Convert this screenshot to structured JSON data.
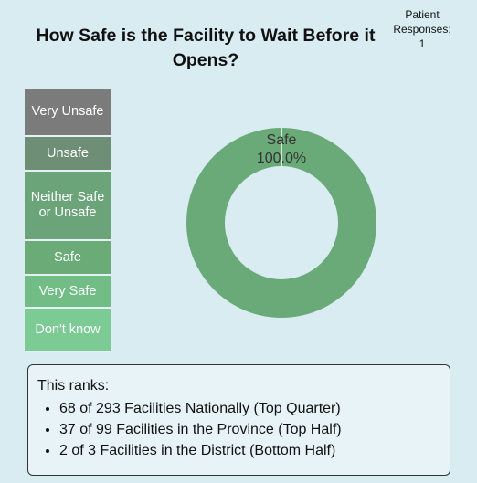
{
  "chart_data": {
    "type": "donut",
    "title": "How Safe is the Facility to Wait Before it Opens?",
    "categories": [
      "Safe"
    ],
    "values": [
      100
    ],
    "value_labels": [
      "100.0%"
    ],
    "colors": [
      "#6aaa78"
    ]
  },
  "responses": {
    "label": "Patient Responses:",
    "count": 1
  },
  "legend": [
    {
      "label": "Very Unsafe",
      "color": "#7b7b7b"
    },
    {
      "label": "Unsafe",
      "color": "#6e8f76"
    },
    {
      "label": "Neither Safe or Unsafe",
      "color": "#6ca47a"
    },
    {
      "label": "Safe",
      "color": "#6aab78"
    },
    {
      "label": "Very Safe",
      "color": "#72bd86"
    },
    {
      "label": "Don't know",
      "color": "#7ccb94"
    }
  ],
  "ranks": {
    "heading": "This ranks:",
    "items": [
      "68 of 293 Facilities Nationally (Top Quarter)",
      "37 of 99 Facilities in the Province (Top Half)",
      "2 of 3 Facilities in the District (Bottom Half)"
    ]
  }
}
